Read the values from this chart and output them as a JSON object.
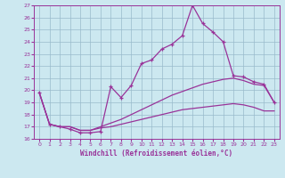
{
  "xlabel": "Windchill (Refroidissement éolien,°C)",
  "background_color": "#cce8f0",
  "line_color": "#993399",
  "grid_color": "#99bbcc",
  "xlim_min": -0.5,
  "xlim_max": 23.5,
  "ylim_min": 16,
  "ylim_max": 27,
  "xticks": [
    0,
    1,
    2,
    3,
    4,
    5,
    6,
    7,
    8,
    9,
    10,
    11,
    12,
    13,
    14,
    15,
    16,
    17,
    18,
    19,
    20,
    21,
    22,
    23
  ],
  "yticks": [
    16,
    17,
    18,
    19,
    20,
    21,
    22,
    23,
    24,
    25,
    26,
    27
  ],
  "line1_x": [
    0,
    1,
    2,
    3,
    4,
    5,
    6,
    7,
    8,
    9,
    10,
    11,
    12,
    13,
    14,
    15,
    16,
    17,
    18,
    19,
    20,
    21,
    22,
    23
  ],
  "line1_y": [
    19.8,
    17.2,
    17.0,
    16.8,
    16.5,
    16.5,
    16.6,
    20.3,
    19.4,
    20.4,
    22.2,
    22.5,
    23.4,
    23.8,
    24.5,
    27.0,
    25.5,
    24.8,
    24.0,
    21.2,
    21.1,
    20.7,
    20.5,
    19.0
  ],
  "line2_x": [
    0,
    1,
    2,
    3,
    4,
    5,
    6,
    7,
    8,
    9,
    10,
    11,
    12,
    13,
    14,
    15,
    16,
    17,
    18,
    19,
    20,
    21,
    22,
    23
  ],
  "line2_y": [
    19.8,
    17.2,
    17.0,
    17.0,
    16.7,
    16.7,
    17.0,
    17.3,
    17.6,
    18.0,
    18.4,
    18.8,
    19.2,
    19.6,
    19.9,
    20.2,
    20.5,
    20.7,
    20.9,
    21.0,
    20.8,
    20.5,
    20.4,
    19.0
  ],
  "line3_x": [
    0,
    1,
    2,
    3,
    4,
    5,
    6,
    7,
    8,
    9,
    10,
    11,
    12,
    13,
    14,
    15,
    16,
    17,
    18,
    19,
    20,
    21,
    22,
    23
  ],
  "line3_y": [
    19.8,
    17.2,
    17.0,
    17.0,
    16.7,
    16.7,
    16.9,
    17.0,
    17.2,
    17.4,
    17.6,
    17.8,
    18.0,
    18.2,
    18.4,
    18.5,
    18.6,
    18.7,
    18.8,
    18.9,
    18.8,
    18.6,
    18.3,
    18.3
  ]
}
